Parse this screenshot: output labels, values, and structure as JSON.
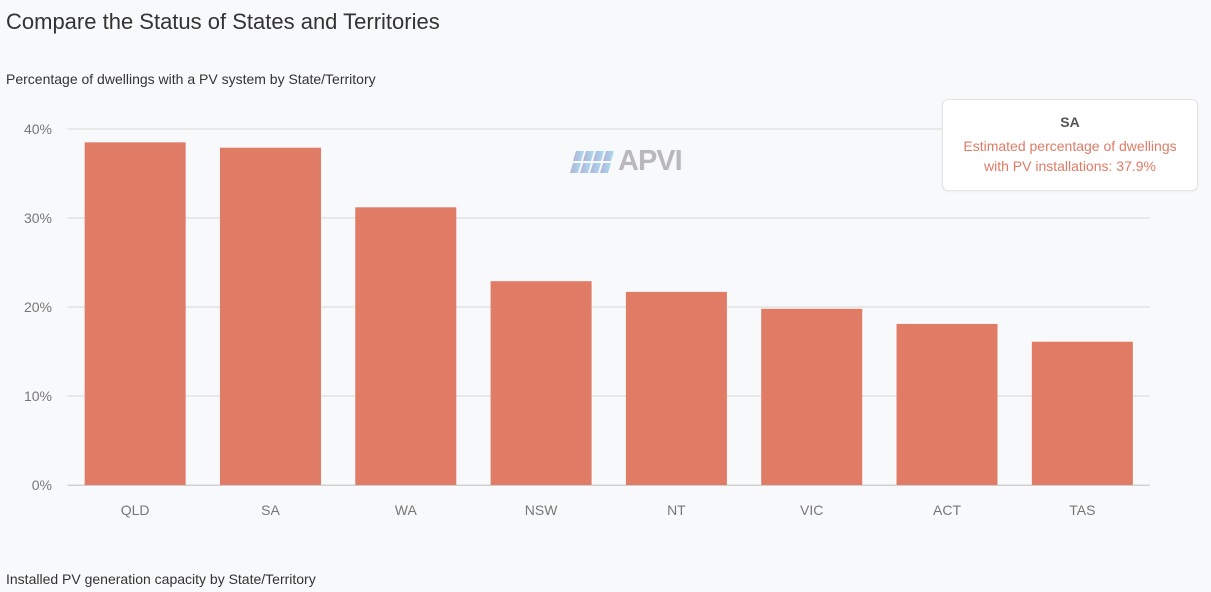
{
  "page": {
    "title": "Compare the Status of States and Territories",
    "section1_title": "Percentage of dwellings with a PV system by State/Territory",
    "section2_title": "Installed PV generation capacity by State/Territory"
  },
  "logo": {
    "text": "APVI"
  },
  "tooltip": {
    "title": "SA",
    "line1": "Estimated percentage of dwellings",
    "line2": "with PV installations: 37.9%"
  },
  "chart_data": {
    "type": "bar",
    "title": "",
    "xlabel": "",
    "ylabel": "",
    "categories": [
      "QLD",
      "SA",
      "WA",
      "NSW",
      "NT",
      "VIC",
      "ACT",
      "TAS"
    ],
    "values": [
      38.5,
      37.9,
      31.2,
      22.9,
      21.7,
      19.8,
      18.1,
      16.1
    ],
    "unit": "%",
    "ylim": [
      0,
      40
    ],
    "yticks": [
      "0%",
      "10%",
      "20%",
      "30%",
      "40%"
    ],
    "grid": true,
    "bar_color": "#e07b66"
  }
}
